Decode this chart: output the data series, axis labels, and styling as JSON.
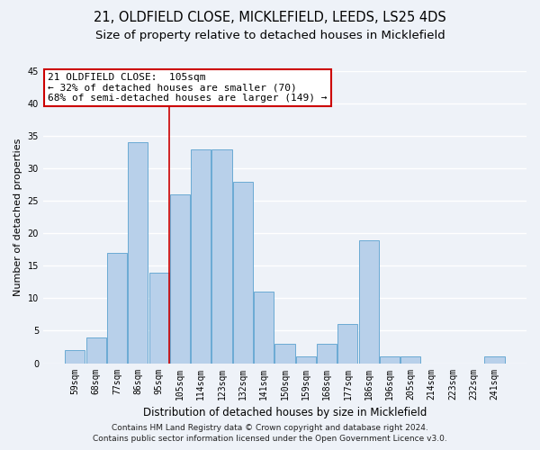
{
  "title1": "21, OLDFIELD CLOSE, MICKLEFIELD, LEEDS, LS25 4DS",
  "title2": "Size of property relative to detached houses in Micklefield",
  "xlabel": "Distribution of detached houses by size in Micklefield",
  "ylabel": "Number of detached properties",
  "categories": [
    "59sqm",
    "68sqm",
    "77sqm",
    "86sqm",
    "95sqm",
    "105sqm",
    "114sqm",
    "123sqm",
    "132sqm",
    "141sqm",
    "150sqm",
    "159sqm",
    "168sqm",
    "177sqm",
    "186sqm",
    "196sqm",
    "205sqm",
    "214sqm",
    "223sqm",
    "232sqm",
    "241sqm"
  ],
  "values": [
    2,
    4,
    17,
    34,
    14,
    26,
    33,
    33,
    28,
    11,
    3,
    1,
    3,
    6,
    19,
    1,
    1,
    0,
    0,
    0,
    1
  ],
  "bar_color": "#b8d0ea",
  "bar_edge_color": "#6aaad4",
  "highlight_index": 5,
  "highlight_line_color": "#cc0000",
  "annotation_text": "21 OLDFIELD CLOSE:  105sqm\n← 32% of detached houses are smaller (70)\n68% of semi-detached houses are larger (149) →",
  "annotation_box_facecolor": "#ffffff",
  "annotation_box_edgecolor": "#cc0000",
  "ylim": [
    0,
    45
  ],
  "yticks": [
    0,
    5,
    10,
    15,
    20,
    25,
    30,
    35,
    40,
    45
  ],
  "footer1": "Contains HM Land Registry data © Crown copyright and database right 2024.",
  "footer2": "Contains public sector information licensed under the Open Government Licence v3.0.",
  "bg_color": "#eef2f8",
  "plot_bg_color": "#eef2f8",
  "grid_color": "#ffffff",
  "title1_fontsize": 10.5,
  "title2_fontsize": 9.5,
  "xlabel_fontsize": 8.5,
  "ylabel_fontsize": 8,
  "tick_fontsize": 7,
  "annotation_fontsize": 8,
  "footer_fontsize": 6.5
}
